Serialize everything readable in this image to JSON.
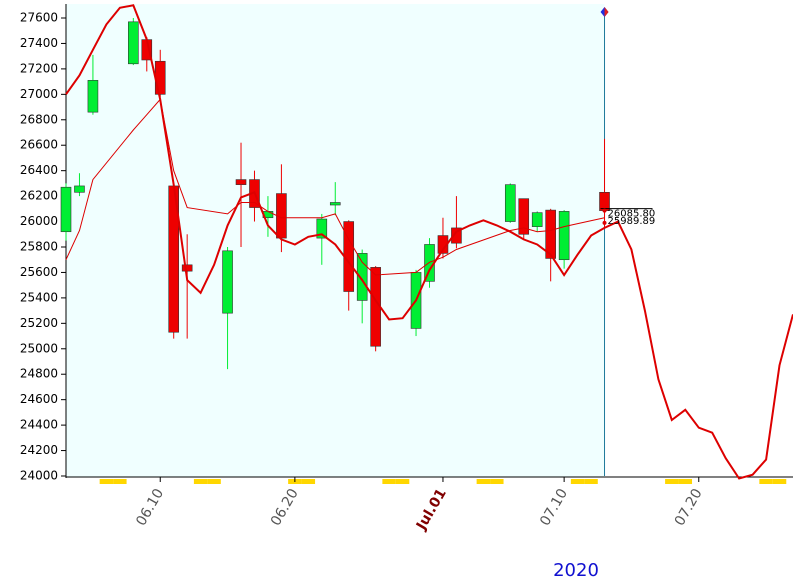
{
  "chart_data": {
    "type": "candlestick",
    "x": [
      "2020-06-03",
      "2020-06-04",
      "2020-06-05",
      "2020-06-08",
      "2020-06-09",
      "2020-06-10",
      "2020-06-11",
      "2020-06-12",
      "2020-06-15",
      "2020-06-16",
      "2020-06-17",
      "2020-06-18",
      "2020-06-19",
      "2020-06-22",
      "2020-06-23",
      "2020-06-24",
      "2020-06-25",
      "2020-06-26",
      "2020-06-29",
      "2020-06-30",
      "2020-07-01",
      "2020-07-02",
      "2020-07-06",
      "2020-07-07",
      "2020-07-08",
      "2020-07-09",
      "2020-07-10",
      "2020-07-13"
    ],
    "open": [
      25920,
      26230,
      26860,
      27240,
      27430,
      27260,
      26280,
      25660,
      25280,
      26330,
      26330,
      26030,
      26220,
      25870,
      26130,
      26000,
      25380,
      25640,
      25160,
      25530,
      25890,
      25950,
      26000,
      26180,
      25960,
      26090,
      25700,
      26230
    ],
    "high": [
      26300,
      26380,
      27310,
      27600,
      27450,
      27350,
      26280,
      25900,
      25800,
      26620,
      26400,
      26200,
      26450,
      26060,
      26310,
      26010,
      25780,
      25650,
      25620,
      25870,
      26030,
      26200,
      26300,
      26180,
      26080,
      26100,
      26090,
      26650
    ],
    "low": [
      25850,
      26200,
      26840,
      27230,
      27180,
      26980,
      25080,
      25080,
      24840,
      25800,
      26000,
      25880,
      25760,
      25660,
      26050,
      25300,
      25200,
      24980,
      25100,
      25480,
      25710,
      25790,
      25990,
      25860,
      25920,
      25530,
      25630,
      25950
    ],
    "close": [
      26270,
      26280,
      27110,
      27570,
      27270,
      27000,
      25130,
      25610,
      25770,
      26290,
      26110,
      26080,
      25870,
      26020,
      26150,
      25450,
      25750,
      25020,
      25600,
      25820,
      25750,
      25830,
      26290,
      25900,
      26070,
      25710,
      26080,
      26085.8
    ],
    "up_color": "#00ee33",
    "down_color": "#ee0000",
    "lines": [
      {
        "color": "#dd0000",
        "width": 2,
        "x": [
          "2020-06-03",
          "2020-06-04",
          "2020-06-05",
          "2020-06-06",
          "2020-06-07",
          "2020-06-08",
          "2020-06-09",
          "2020-06-10",
          "2020-06-11",
          "2020-06-12",
          "2020-06-13",
          "2020-06-14",
          "2020-06-15",
          "2020-06-16",
          "2020-06-17",
          "2020-06-18",
          "2020-06-19",
          "2020-06-20",
          "2020-06-21",
          "2020-06-22",
          "2020-06-23",
          "2020-06-24",
          "2020-06-25",
          "2020-06-26",
          "2020-06-27",
          "2020-06-28",
          "2020-06-29",
          "2020-06-30",
          "2020-07-01",
          "2020-07-02",
          "2020-07-03",
          "2020-07-04",
          "2020-07-05",
          "2020-07-06",
          "2020-07-07",
          "2020-07-08",
          "2020-07-09",
          "2020-07-10",
          "2020-07-11",
          "2020-07-12",
          "2020-07-13",
          "2020-07-14",
          "2020-07-15",
          "2020-07-16",
          "2020-07-17",
          "2020-07-18",
          "2020-07-19",
          "2020-07-20",
          "2020-07-21",
          "2020-07-22",
          "2020-07-23",
          "2020-07-24",
          "2020-07-25",
          "2020-07-26",
          "2020-07-27"
        ],
        "values": [
          27000,
          27150,
          27350,
          27550,
          27680,
          27700,
          27430,
          26960,
          26290,
          25540,
          25440,
          25660,
          25970,
          26190,
          26230,
          25970,
          25860,
          25820,
          25880,
          25900,
          25820,
          25680,
          25540,
          25380,
          25230,
          25240,
          25380,
          25620,
          25780,
          25920,
          25970,
          26010,
          25970,
          25920,
          25860,
          25820,
          25740,
          25580,
          25740,
          25890,
          25950,
          26000,
          25780,
          25300,
          24760,
          24440,
          24520,
          24380,
          24340,
          24140,
          23980,
          24010,
          24130,
          24870,
          25270
        ]
      },
      {
        "color": "#dd0000",
        "width": 1,
        "x": [
          "2020-06-03",
          "2020-06-04",
          "2020-06-05",
          "2020-06-08",
          "2020-06-09",
          "2020-06-10",
          "2020-06-11",
          "2020-06-12",
          "2020-06-15",
          "2020-06-16",
          "2020-06-17",
          "2020-06-18",
          "2020-06-19",
          "2020-06-22",
          "2020-06-23",
          "2020-06-24",
          "2020-06-25",
          "2020-06-26",
          "2020-06-29",
          "2020-06-30",
          "2020-07-01",
          "2020-07-02",
          "2020-07-06",
          "2020-07-07",
          "2020-07-08",
          "2020-07-09",
          "2020-07-10",
          "2020-07-13"
        ],
        "values": [
          25700,
          25930,
          26330,
          26720,
          26840,
          26960,
          26400,
          26110,
          26060,
          26150,
          26150,
          26080,
          26030,
          26030,
          26060,
          25860,
          25680,
          25580,
          25600,
          25680,
          25720,
          25780,
          25930,
          25950,
          25920,
          25930,
          25960,
          26030
        ]
      }
    ],
    "xlim": [
      "2020-06-03",
      "2020-07-27"
    ],
    "xticks": [
      {
        "value": "2020-06-10",
        "label": "06.10"
      },
      {
        "value": "2020-06-20",
        "label": "06.20"
      },
      {
        "value": "2020-07-01",
        "label": "Jul.01"
      },
      {
        "value": "2020-07-10",
        "label": "07.10"
      },
      {
        "value": "2020-07-20",
        "label": "07.20"
      }
    ],
    "ylim": [
      24000,
      27600
    ],
    "yticks": [
      24000,
      24200,
      24400,
      24600,
      24800,
      25000,
      25200,
      25400,
      25600,
      25800,
      26000,
      26200,
      26400,
      26600,
      26800,
      27000,
      27200,
      27400,
      27600
    ],
    "year_label": "2020",
    "annotations": [
      {
        "text": "26085.80",
        "value": 26085.8
      },
      {
        "text": "25989.89",
        "value": 25989.89
      }
    ]
  }
}
